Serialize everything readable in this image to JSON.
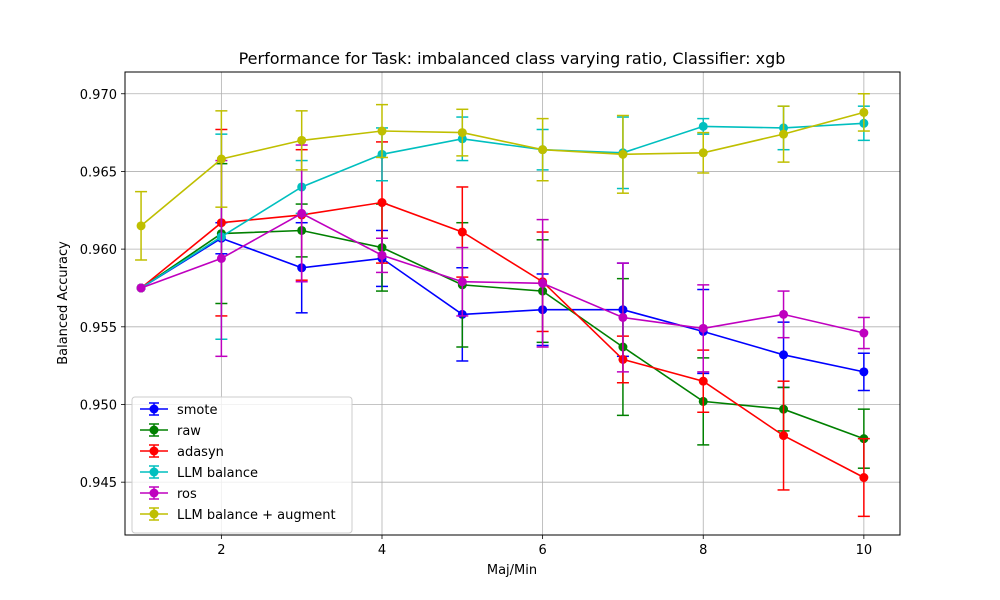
{
  "chart_data": {
    "type": "line",
    "title": "Performance for Task: imbalanced class varying ratio, Classifier: xgb",
    "xlabel": "Maj/Min",
    "ylabel": "Balanced Accuracy",
    "xlim": [
      0.8,
      10.45
    ],
    "ylim": [
      0.9416,
      0.9714
    ],
    "xticks": [
      2,
      4,
      6,
      8,
      10
    ],
    "yticks": [
      0.945,
      0.95,
      0.955,
      0.96,
      0.965,
      0.97
    ],
    "ytick_labels": [
      "0.945",
      "0.950",
      "0.955",
      "0.960",
      "0.965",
      "0.970"
    ],
    "grid": true,
    "legend_position": "lower-left",
    "series": [
      {
        "name": "smote",
        "color": "#0000ff",
        "x": [
          1,
          2,
          3,
          4,
          5,
          6,
          7,
          8,
          9,
          10
        ],
        "y": [
          0.9575,
          0.9607,
          0.9588,
          0.9594,
          0.9558,
          0.9561,
          0.9561,
          0.9547,
          0.9532,
          0.9521
        ],
        "err": [
          0,
          0.001,
          0.0029,
          0.0018,
          0.003,
          0.0023,
          0.003,
          0.0027,
          0.0021,
          0.0012
        ]
      },
      {
        "name": "raw",
        "color": "#008000",
        "x": [
          1,
          2,
          3,
          4,
          5,
          6,
          7,
          8,
          9,
          10
        ],
        "y": [
          0.9575,
          0.961,
          0.9612,
          0.9601,
          0.9577,
          0.9573,
          0.9537,
          0.9502,
          0.9497,
          0.9478
        ],
        "err": [
          0,
          0.0045,
          0.0017,
          0.0028,
          0.004,
          0.0033,
          0.0044,
          0.0028,
          0.0014,
          0.0019
        ]
      },
      {
        "name": "adasyn",
        "color": "#ff0000",
        "x": [
          1,
          2,
          3,
          4,
          5,
          6,
          7,
          8,
          9,
          10
        ],
        "y": [
          0.9575,
          0.9617,
          0.9622,
          0.963,
          0.9611,
          0.9579,
          0.9529,
          0.9515,
          0.948,
          0.9453
        ],
        "err": [
          0,
          0.006,
          0.0042,
          0.0039,
          0.0029,
          0.0032,
          0.0015,
          0.002,
          0.0035,
          0.0025
        ]
      },
      {
        "name": "LLM balance",
        "color": "#00bfbf",
        "x": [
          1,
          2,
          3,
          4,
          5,
          6,
          7,
          8,
          9,
          10
        ],
        "y": [
          0.9575,
          0.9608,
          0.964,
          0.9661,
          0.9671,
          0.9664,
          0.9662,
          0.9679,
          0.9678,
          0.9681
        ],
        "err": [
          0,
          0.0066,
          0.0017,
          0.0017,
          0.0014,
          0.0013,
          0.0023,
          0.0005,
          0.0014,
          0.0011
        ]
      },
      {
        "name": "ros",
        "color": "#bf00bf",
        "x": [
          1,
          2,
          3,
          4,
          5,
          6,
          7,
          8,
          9,
          10
        ],
        "y": [
          0.9575,
          0.9594,
          0.9623,
          0.9596,
          0.9579,
          0.9578,
          0.9556,
          0.9549,
          0.9558,
          0.9546
        ],
        "err": [
          0,
          0.0063,
          0.0044,
          0.0011,
          0.0022,
          0.0041,
          0.0035,
          0.0028,
          0.0015,
          0.001
        ]
      },
      {
        "name": "LLM balance + augment",
        "color": "#bfbf00",
        "x": [
          1,
          2,
          3,
          4,
          5,
          6,
          7,
          8,
          9,
          10
        ],
        "y": [
          0.9615,
          0.9658,
          0.967,
          0.9676,
          0.9675,
          0.9664,
          0.9661,
          0.9662,
          0.9674,
          0.9688
        ],
        "err": [
          0.0022,
          0.0031,
          0.0019,
          0.0017,
          0.0015,
          0.002,
          0.0025,
          0.0013,
          0.0018,
          0.0012
        ]
      }
    ]
  }
}
